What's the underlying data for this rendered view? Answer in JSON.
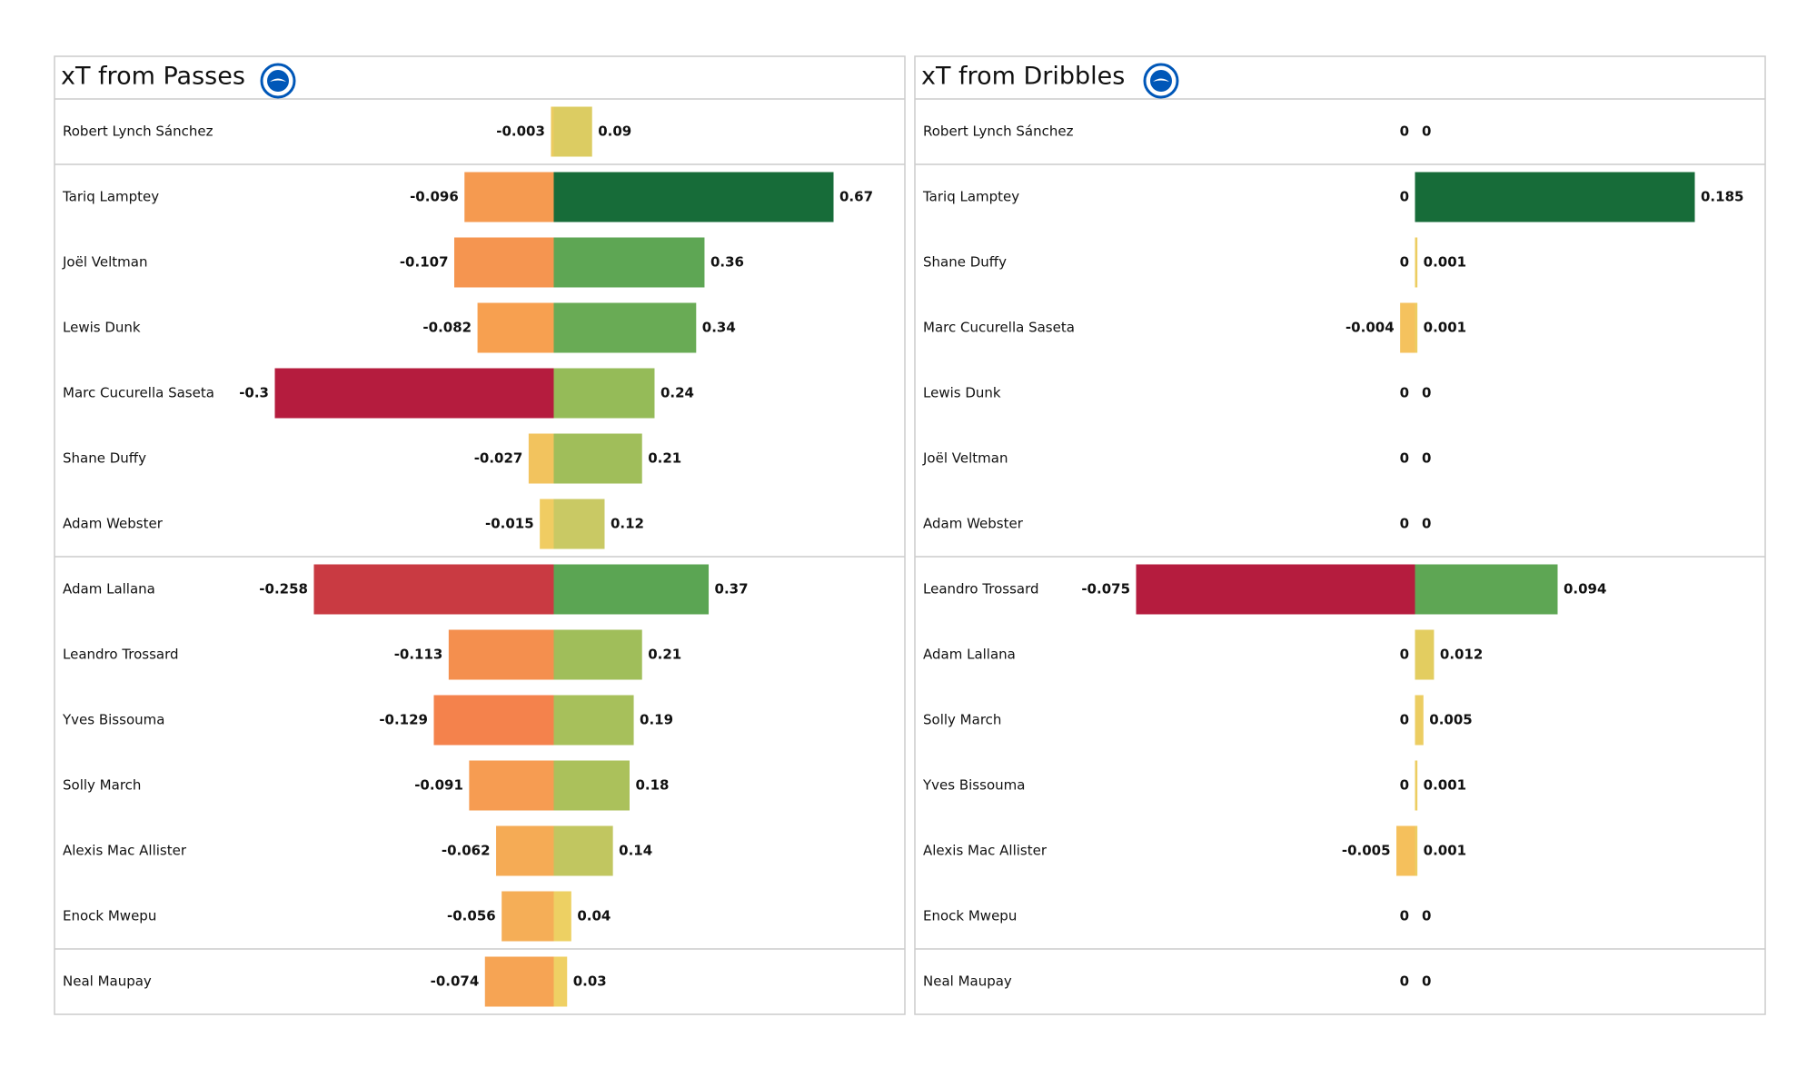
{
  "chart_data": [
    {
      "type": "bar",
      "title": "xT from Passes",
      "categories": [
        "Robert Lynch Sánchez",
        "Tariq Lamptey",
        "Joël Veltman",
        "Lewis Dunk",
        "Marc Cucurella Saseta",
        "Shane Duffy",
        "Adam Webster",
        "Adam Lallana",
        "Leandro Trossard",
        "Yves Bissouma",
        "Solly March",
        "Alexis Mac Allister",
        "Enock Mwepu",
        "Neal Maupay"
      ],
      "series": [
        {
          "values": [
            -0.003,
            -0.096,
            -0.107,
            -0.082,
            -0.3,
            -0.027,
            -0.015,
            -0.258,
            -0.113,
            -0.129,
            -0.091,
            -0.062,
            -0.056,
            -0.074
          ],
          "colors": [
            "#eccb60",
            "#f59a50",
            "#f59550",
            "#f7a050",
            "#b51c3e",
            "#f2c35e",
            "#f0cc62",
            "#c93a42",
            "#f48f4e",
            "#f4824c",
            "#f69c52",
            "#f5ab55",
            "#f5ae57",
            "#f6a454"
          ]
        },
        {
          "values": [
            0.09,
            0.67,
            0.36,
            0.34,
            0.24,
            0.21,
            0.12,
            0.37,
            0.21,
            0.19,
            0.18,
            0.14,
            0.04,
            0.03
          ],
          "colors": [
            "#dccc62",
            "#176c39",
            "#5ea654",
            "#69ab55",
            "#95bb58",
            "#a0be5a",
            "#c9c964",
            "#5ba553",
            "#a0be5a",
            "#a7c05b",
            "#abc15b",
            "#c1c660",
            "#edd063",
            "#efd064"
          ]
        }
      ]
    },
    {
      "type": "bar",
      "title": "xT from Dribbles",
      "categories": [
        "Robert Lynch Sánchez",
        "Tariq Lamptey",
        "Shane Duffy",
        "Marc Cucurella Saseta",
        "Lewis Dunk",
        "Joël Veltman",
        "Adam Webster",
        "Leandro Trossard",
        "Adam Lallana",
        "Solly March",
        "Yves Bissouma",
        "Alexis Mac Allister",
        "Enock Mwepu",
        "Neal Maupay"
      ],
      "series": [
        {
          "values": [
            0,
            0,
            0,
            -0.004,
            0,
            0,
            0,
            -0.075,
            0,
            0,
            0,
            -0.005,
            0,
            0
          ],
          "colors": [
            "#f0cc62",
            "#f0cc62",
            "#f0cc62",
            "#f5c25e",
            "#f0cc62",
            "#f0cc62",
            "#f0cc62",
            "#b51c3e",
            "#f0cc62",
            "#f0cc62",
            "#f0cc62",
            "#f5c05c",
            "#f0cc62",
            "#f0cc62"
          ]
        },
        {
          "values": [
            0,
            0.185,
            0.001,
            0.001,
            0,
            0,
            0,
            0.094,
            0.012,
            0.005,
            0.001,
            0.001,
            0,
            0
          ],
          "colors": [
            "#f0cc62",
            "#176c39",
            "#eccd62",
            "#eccd62",
            "#f0cc62",
            "#f0cc62",
            "#f0cc62",
            "#5ea654",
            "#e3cd60",
            "#eccd62",
            "#eccd62",
            "#eccd62",
            "#f0cc62",
            "#f0cc62"
          ]
        }
      ]
    }
  ]
}
